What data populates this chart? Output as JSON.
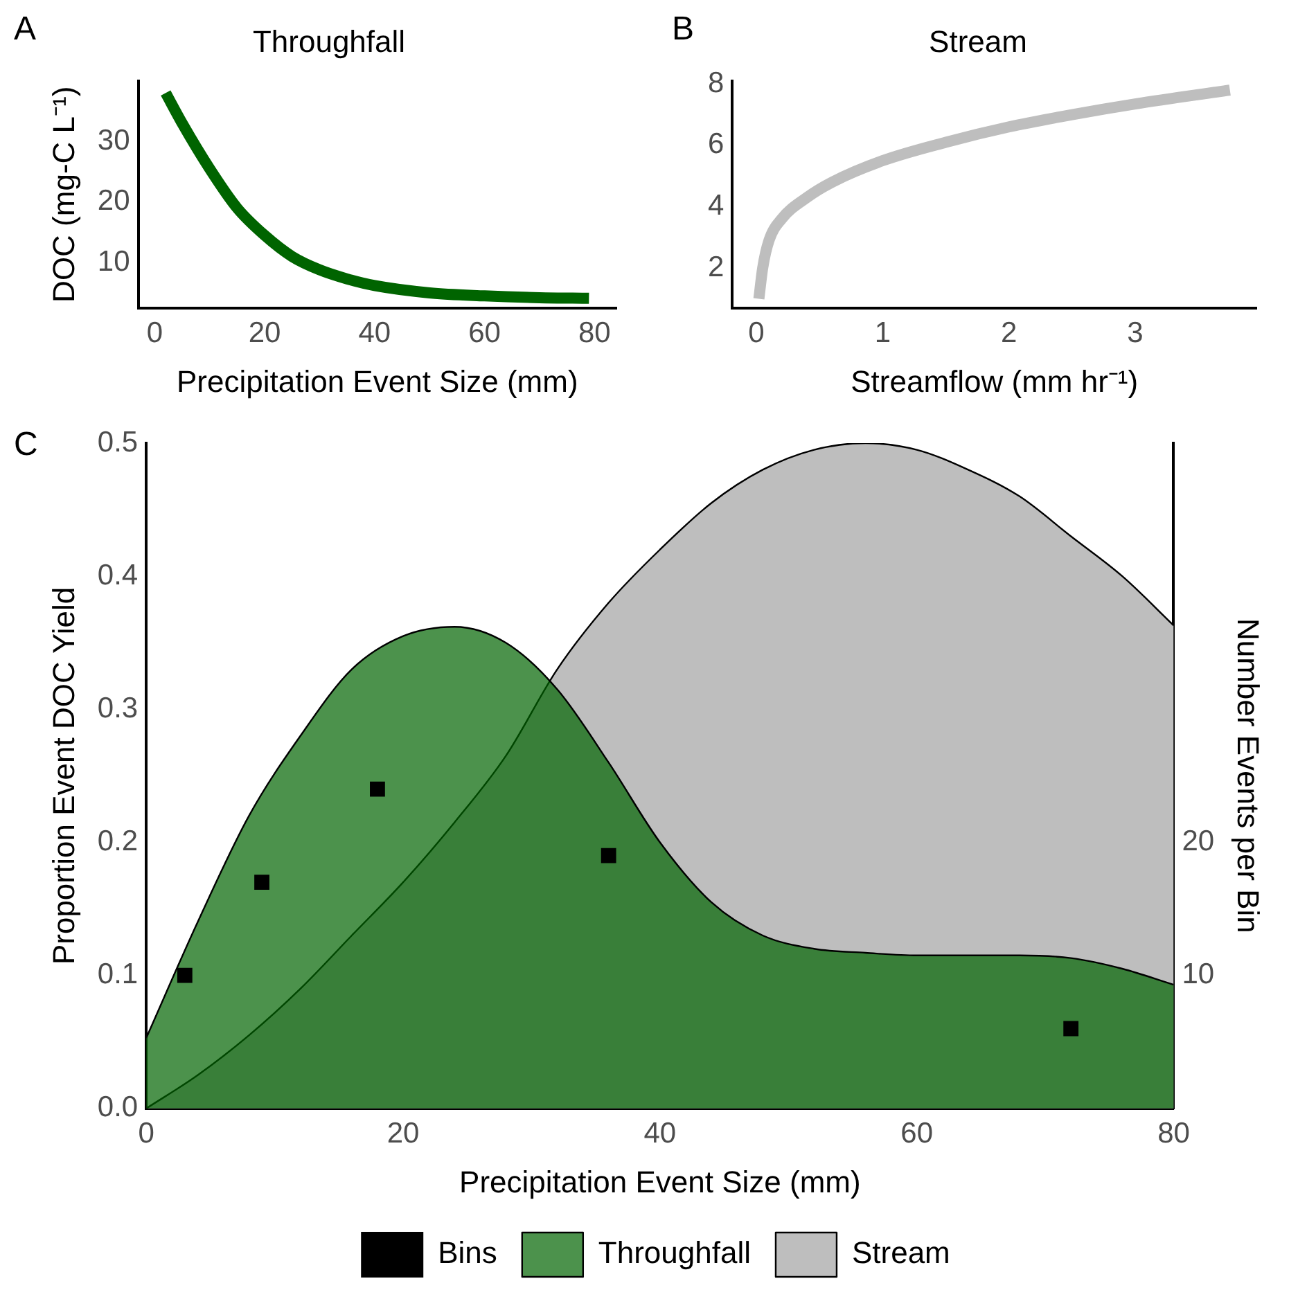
{
  "chart_data": [
    {
      "type": "line",
      "title": "Throughfall",
      "xlabel": "Precipitation Event Size (mm)",
      "ylabel": "DOC (mg-C L⁻¹)",
      "annotations": [
        "A"
      ],
      "marker": "none",
      "xlim": [
        -3,
        84
      ],
      "xticks": [
        0,
        20,
        40,
        60,
        80
      ],
      "ylim": [
        2.5,
        40
      ],
      "yticks": [
        10,
        20,
        30
      ],
      "series": [
        {
          "color": "#006400",
          "x": [
            2,
            5,
            10,
            15,
            20,
            25,
            30,
            35,
            40,
            50,
            60,
            70,
            79
          ],
          "values": [
            38,
            33,
            25.5,
            19,
            14.5,
            11,
            8.8,
            7.3,
            6.2,
            5,
            4.5,
            4.2,
            4.1
          ]
        }
      ]
    },
    {
      "type": "line",
      "title": "Stream",
      "xlabel": "Streamflow (mm hr⁻¹)",
      "annotations": [
        "B"
      ],
      "marker": "none",
      "xlim": [
        -0.19,
        3.96
      ],
      "xticks": [
        0,
        1,
        2,
        3
      ],
      "ylim": [
        0.7,
        8.1
      ],
      "yticks": [
        2,
        4,
        6,
        8
      ],
      "series": [
        {
          "color": "#bebebe",
          "x": [
            0.02,
            0.05,
            0.1,
            0.2,
            0.4,
            0.6,
            1,
            1.5,
            2,
            2.5,
            3,
            3.75
          ],
          "values": [
            1.0,
            2,
            2.9,
            3.6,
            4.3,
            4.8,
            5.5,
            6.1,
            6.6,
            7,
            7.35,
            7.8
          ]
        }
      ]
    },
    {
      "type": "area",
      "xlabel": "Precipitation Event Size (mm)",
      "ylabel": "Proportion Event DOC Yield",
      "y2label": "Number Events per Bin",
      "annotations": [
        "C"
      ],
      "marker": "none",
      "legend": "bottom",
      "x": [
        0,
        4,
        8,
        12,
        16,
        20,
        24,
        28,
        32,
        36,
        40,
        44,
        48,
        52,
        56,
        60,
        64,
        68,
        72,
        76,
        80
      ],
      "xlim": [
        0,
        80
      ],
      "xticks": [
        0,
        20,
        40,
        60,
        80
      ],
      "ylim": [
        0,
        0.5
      ],
      "yticks": [
        {
          "value": 0,
          "label": "0.0"
        },
        0.1,
        0.2,
        0.3,
        0.4,
        0.5
      ],
      "y2lim": [
        0,
        50
      ],
      "y2ticks": [
        10,
        20
      ],
      "series": [
        {
          "name": "Throughfall",
          "color": "#006400",
          "values": [
            0.053,
            0.14,
            0.22,
            0.28,
            0.33,
            0.355,
            0.362,
            0.35,
            0.315,
            0.26,
            0.2,
            0.155,
            0.13,
            0.12,
            0.117,
            0.115,
            0.115,
            0.115,
            0.113,
            0.105,
            0.093
          ]
        },
        {
          "name": "Stream",
          "color": "#bebebe",
          "values": [
            0,
            0.025,
            0.055,
            0.09,
            0.13,
            0.17,
            0.215,
            0.265,
            0.33,
            0.38,
            0.42,
            0.455,
            0.48,
            0.495,
            0.5,
            0.495,
            0.48,
            0.46,
            0.43,
            0.4,
            0.363
          ]
        },
        {
          "name": "Bins",
          "type": "scatter",
          "axis": "y2",
          "marker": "square",
          "color": "#000000",
          "x": [
            3,
            9,
            18,
            36,
            72
          ],
          "values": [
            10,
            17,
            24,
            19,
            6
          ]
        }
      ]
    }
  ]
}
